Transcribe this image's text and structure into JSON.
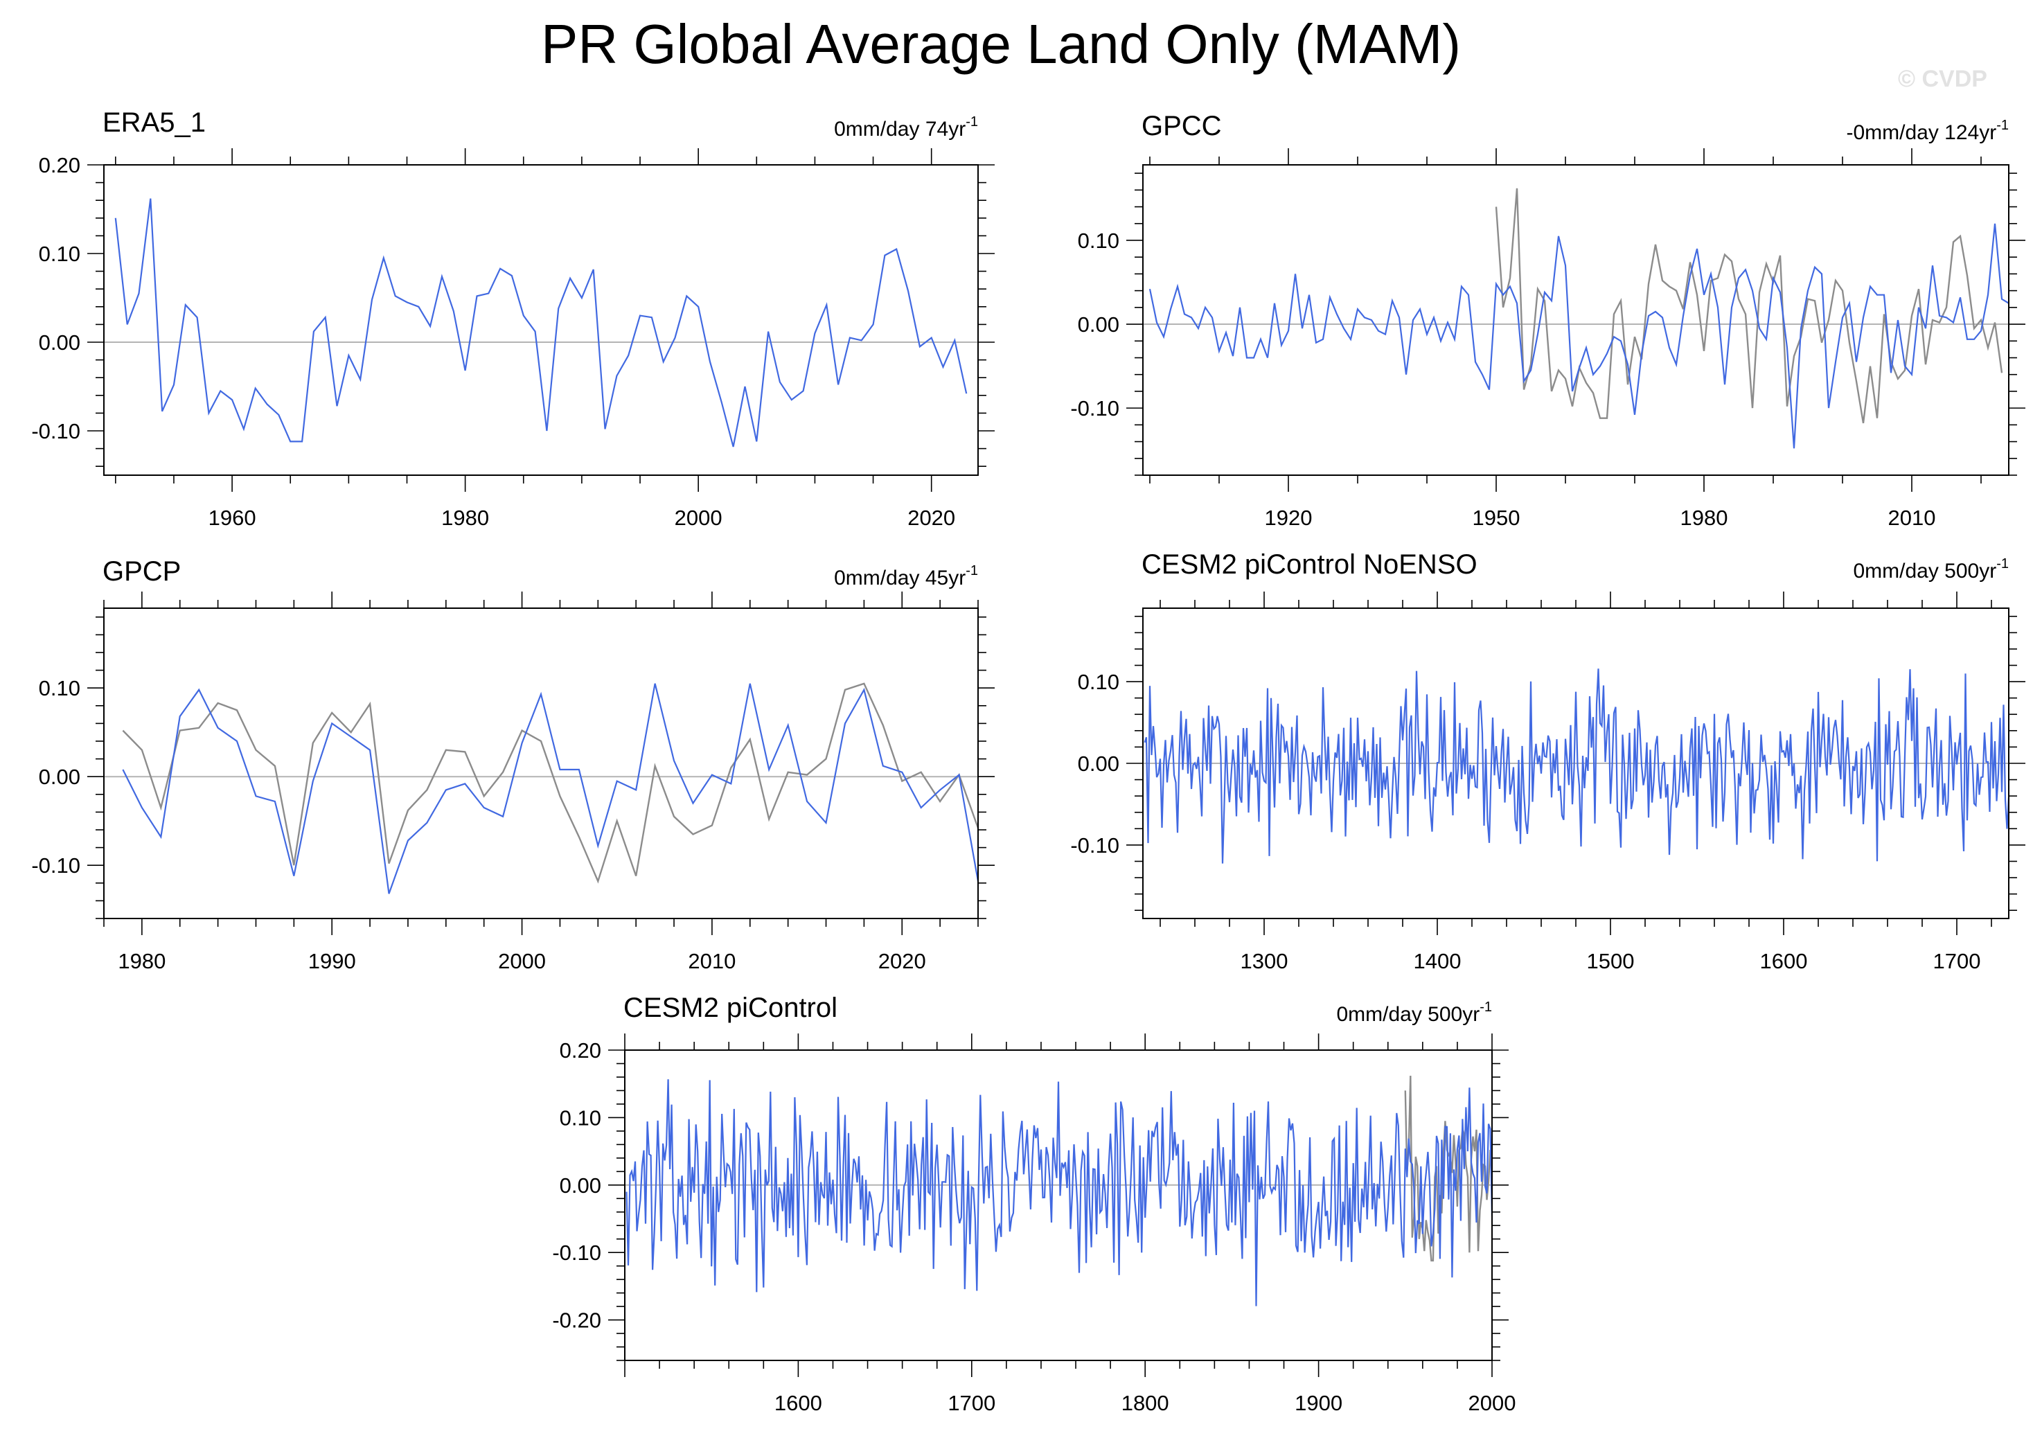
{
  "title": "PR Global Average Land Only (MAM)",
  "watermark": "© CVDP",
  "colors": {
    "primary": "#4169e1",
    "secondary": "#8c8c8c",
    "zero": "#b4b4b4",
    "axis": "#000000"
  },
  "chart_data": [
    {
      "type": "line",
      "title": "ERA5_1",
      "stat_value": "0mm/day 74yr",
      "stat_exp": "-1",
      "xlim": [
        1949,
        2024
      ],
      "ylim": [
        -0.15,
        0.2
      ],
      "yticks": [
        -0.1,
        0.0,
        0.1,
        0.2
      ],
      "ytick_labels": [
        "-0.10",
        "0.00",
        "0.10",
        "0.20"
      ],
      "xticks": [
        1960,
        1980,
        2000,
        2020
      ],
      "xtick_labels": [
        "1960",
        "1980",
        "2000",
        "2020"
      ],
      "series": [
        {
          "name": "ERA5_1",
          "x_start": 1950,
          "values": [
            0.14,
            0.02,
            0.055,
            0.162,
            -0.078,
            -0.048,
            0.042,
            0.028,
            -0.08,
            -0.055,
            -0.065,
            -0.098,
            -0.052,
            -0.07,
            -0.082,
            -0.112,
            -0.112,
            0.012,
            0.028,
            -0.072,
            -0.015,
            -0.042,
            0.048,
            0.095,
            0.052,
            0.045,
            0.04,
            0.018,
            0.074,
            0.035,
            -0.032,
            0.052,
            0.055,
            0.083,
            0.075,
            0.03,
            0.012,
            -0.1,
            0.038,
            0.072,
            0.05,
            0.082,
            -0.098,
            -0.038,
            -0.015,
            0.03,
            0.028,
            -0.022,
            0.005,
            0.052,
            0.04,
            -0.022,
            -0.068,
            -0.118,
            -0.05,
            -0.112,
            0.012,
            -0.045,
            -0.065,
            -0.055,
            0.01,
            0.042,
            -0.048,
            0.005,
            0.002,
            0.02,
            0.098,
            0.105,
            0.058,
            -0.005,
            0.005,
            -0.028,
            0.002,
            -0.058
          ]
        }
      ]
    },
    {
      "type": "line",
      "title": "GPCC",
      "stat_value": "-0mm/day 124yr",
      "stat_exp": "-1",
      "xlim": [
        1899,
        2024
      ],
      "ylim": [
        -0.18,
        0.19
      ],
      "yticks": [
        -0.1,
        0.0,
        0.1
      ],
      "ytick_labels": [
        "-0.10",
        "0.00",
        "0.10"
      ],
      "xticks": [
        1920,
        1950,
        1980,
        2010
      ],
      "xtick_labels": [
        "1920",
        "1950",
        "1980",
        "2010"
      ],
      "series": [
        {
          "name": "GPCC",
          "x_start": 1900,
          "values": [
            0.042,
            0.002,
            -0.015,
            0.018,
            0.045,
            0.012,
            0.008,
            -0.005,
            0.02,
            0.008,
            -0.032,
            -0.01,
            -0.038,
            0.02,
            -0.04,
            -0.04,
            -0.018,
            -0.04,
            0.025,
            -0.025,
            -0.008,
            0.06,
            -0.005,
            0.035,
            -0.022,
            -0.018,
            0.032,
            0.012,
            -0.005,
            -0.018,
            0.018,
            0.008,
            0.005,
            -0.008,
            -0.012,
            0.028,
            0.008,
            -0.06,
            0.005,
            0.018,
            -0.012,
            0.008,
            -0.02,
            0.002,
            -0.018,
            0.045,
            0.035,
            -0.045,
            -0.06,
            -0.078,
            0.048,
            0.035,
            0.045,
            0.025,
            -0.068,
            -0.055,
            -0.012,
            0.038,
            0.028,
            0.105,
            0.07,
            -0.08,
            -0.052,
            -0.028,
            -0.06,
            -0.05,
            -0.035,
            -0.015,
            -0.02,
            -0.048,
            -0.108,
            -0.035,
            0.01,
            0.015,
            0.008,
            -0.028,
            -0.048,
            0.01,
            0.058,
            0.09,
            0.035,
            0.06,
            0.02,
            -0.072,
            0.02,
            0.055,
            0.065,
            0.04,
            -0.005,
            -0.018,
            0.055,
            0.038,
            -0.028,
            -0.148,
            -0.005,
            0.04,
            0.068,
            0.06,
            -0.1,
            -0.045,
            0.008,
            0.025,
            -0.045,
            0.008,
            0.045,
            0.035,
            0.035,
            -0.058,
            0.005,
            -0.05,
            -0.06,
            0.02,
            -0.005,
            0.07,
            0.01,
            0.008,
            0.002,
            0.032,
            -0.018,
            -0.018,
            -0.008,
            0.035,
            0.12,
            0.03,
            0.025,
            0.002,
            0.015,
            -0.03,
            -0.028,
            0.022,
            0.05,
            0.048,
            0.002,
            -0.065,
            -0.035,
            -0.16
          ]
        },
        {
          "name": "reference",
          "x_start": 1950,
          "values": [
            0.14,
            0.02,
            0.055,
            0.162,
            -0.078,
            -0.048,
            0.042,
            0.028,
            -0.08,
            -0.055,
            -0.065,
            -0.098,
            -0.052,
            -0.07,
            -0.082,
            -0.112,
            -0.112,
            0.012,
            0.028,
            -0.072,
            -0.015,
            -0.042,
            0.048,
            0.095,
            0.052,
            0.045,
            0.04,
            0.018,
            0.074,
            0.035,
            -0.032,
            0.052,
            0.055,
            0.083,
            0.075,
            0.03,
            0.012,
            -0.1,
            0.038,
            0.072,
            0.05,
            0.082,
            -0.098,
            -0.038,
            -0.015,
            0.03,
            0.028,
            -0.022,
            0.005,
            0.052,
            0.04,
            -0.022,
            -0.068,
            -0.118,
            -0.05,
            -0.112,
            0.012,
            -0.045,
            -0.065,
            -0.055,
            0.01,
            0.042,
            -0.048,
            0.005,
            0.002,
            0.02,
            0.098,
            0.105,
            0.058,
            -0.005,
            0.005,
            -0.028,
            0.002,
            -0.058
          ]
        }
      ]
    },
    {
      "type": "line",
      "title": "GPCP",
      "stat_value": "0mm/day 45yr",
      "stat_exp": "-1",
      "xlim": [
        1978,
        2024
      ],
      "ylim": [
        -0.16,
        0.19
      ],
      "yticks": [
        -0.1,
        0.0,
        0.1
      ],
      "ytick_labels": [
        "-0.10",
        "0.00",
        "0.10"
      ],
      "xticks": [
        1980,
        1990,
        2000,
        2010,
        2020
      ],
      "xtick_labels": [
        "1980",
        "1990",
        "2000",
        "2010",
        "2020"
      ],
      "series": [
        {
          "name": "GPCP",
          "x_start": 1979,
          "values": [
            0.008,
            -0.035,
            -0.068,
            0.068,
            0.098,
            0.055,
            0.04,
            -0.022,
            -0.028,
            -0.112,
            -0.005,
            0.06,
            0.045,
            0.03,
            -0.132,
            -0.072,
            -0.052,
            -0.015,
            -0.008,
            -0.035,
            -0.045,
            0.038,
            0.093,
            0.008,
            0.008,
            -0.078,
            -0.005,
            -0.015,
            0.105,
            0.018,
            -0.03,
            0.002,
            -0.008,
            0.105,
            0.008,
            0.058,
            -0.028,
            -0.052,
            0.06,
            0.098,
            0.012,
            0.005,
            -0.035,
            -0.015,
            0.002,
            -0.118
          ]
        },
        {
          "name": "reference",
          "x_start": 1979,
          "values": [
            0.052,
            0.03,
            -0.035,
            0.052,
            0.055,
            0.083,
            0.075,
            0.03,
            0.012,
            -0.1,
            0.038,
            0.072,
            0.05,
            0.082,
            -0.098,
            -0.038,
            -0.015,
            0.03,
            0.028,
            -0.022,
            0.005,
            0.052,
            0.04,
            -0.022,
            -0.068,
            -0.118,
            -0.05,
            -0.112,
            0.012,
            -0.045,
            -0.065,
            -0.055,
            0.01,
            0.042,
            -0.048,
            0.005,
            0.002,
            0.02,
            0.098,
            0.105,
            0.058,
            -0.005,
            0.005,
            -0.028,
            0.002,
            -0.058
          ]
        }
      ]
    },
    {
      "type": "line",
      "title": "CESM2 piControl NoENSO",
      "stat_value": "0mm/day 500yr",
      "stat_exp": "-1",
      "xlim": [
        1230,
        1730
      ],
      "ylim": [
        -0.19,
        0.19
      ],
      "yticks": [
        -0.1,
        0.0,
        0.1
      ],
      "ytick_labels": [
        "-0.10",
        "0.00",
        "0.10"
      ],
      "xticks": [
        1300,
        1400,
        1500,
        1600,
        1700
      ],
      "xtick_labels": [
        "1300",
        "1400",
        "1500",
        "1600",
        "1700"
      ],
      "series": [
        {
          "name": "CESM2 piControl NoENSO",
          "x_start": 1231,
          "noise_amplitude": 0.048,
          "seed": 7
        }
      ]
    },
    {
      "type": "line",
      "title": "CESM2 piControl",
      "stat_value": "0mm/day 500yr",
      "stat_exp": "-1",
      "xlim": [
        1500,
        2000
      ],
      "ylim": [
        -0.26,
        0.2
      ],
      "yticks": [
        -0.2,
        -0.1,
        0.0,
        0.1,
        0.2
      ],
      "ytick_labels": [
        "-0.20",
        "-0.10",
        "0.00",
        "0.10",
        "0.20"
      ],
      "xticks": [
        1600,
        1700,
        1800,
        1900,
        2000
      ],
      "xtick_labels": [
        "1600",
        "1700",
        "1800",
        "1900",
        "2000"
      ],
      "series": [
        {
          "name": "CESM2 piControl",
          "x_start": 1501,
          "noise_amplitude": 0.062,
          "seed": 13
        },
        {
          "name": "reference",
          "x_start": 1950,
          "values": [
            0.14,
            0.02,
            0.055,
            0.162,
            -0.078,
            -0.048,
            0.042,
            0.028,
            -0.08,
            -0.055,
            -0.065,
            -0.098,
            -0.052,
            -0.07,
            -0.082,
            -0.112,
            -0.112,
            0.012,
            0.028,
            -0.072,
            -0.015,
            -0.042,
            0.048,
            0.095,
            0.052,
            0.045,
            0.04,
            0.018,
            0.074,
            0.035,
            -0.032,
            0.052,
            0.055,
            0.083,
            0.075,
            0.03,
            0.012,
            -0.1,
            0.038,
            0.072,
            0.05,
            0.082,
            -0.098,
            -0.038,
            -0.015,
            0.03,
            0.028,
            -0.022,
            0.005,
            0.052,
            0.04
          ]
        }
      ]
    }
  ]
}
